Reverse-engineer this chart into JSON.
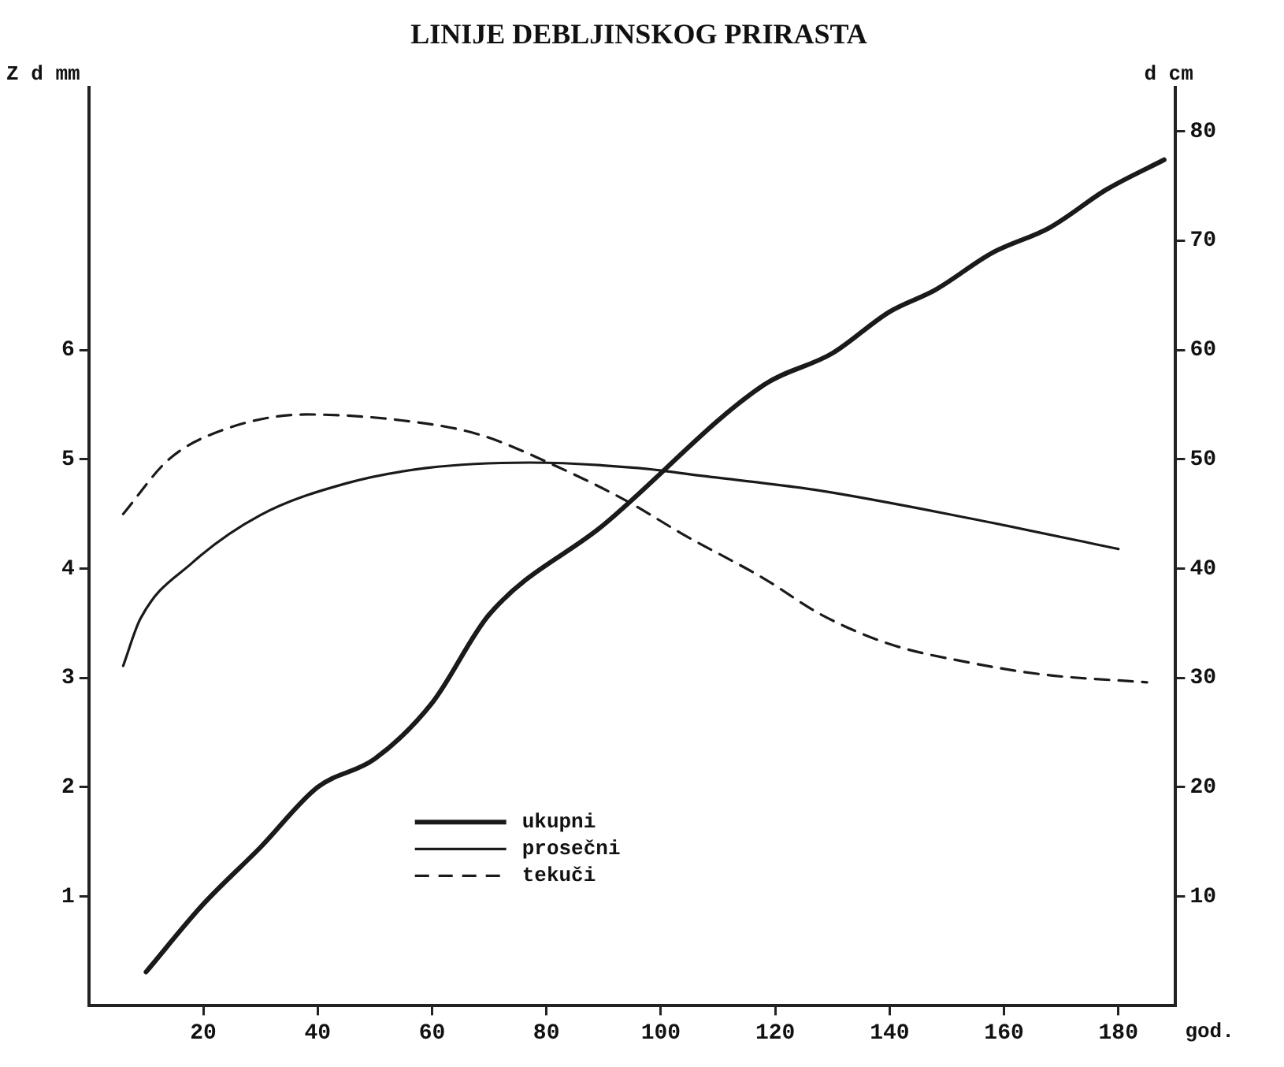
{
  "chart_data": {
    "type": "line",
    "title": "LINIJE DEBLJINSKOG PRIRASTA",
    "xlabel": "god.",
    "ylabel": "Z d mm",
    "y2label": "d cm",
    "xlim": [
      0,
      190
    ],
    "xticks": [
      20,
      40,
      60,
      80,
      100,
      120,
      140,
      160,
      180
    ],
    "ylim": [
      0,
      8.4
    ],
    "yticks": [
      1,
      2,
      3,
      4,
      5,
      6
    ],
    "y2lim": [
      0,
      84
    ],
    "y2ticks": [
      10,
      20,
      30,
      40,
      50,
      60,
      70,
      80
    ],
    "grid": false,
    "legend": "bottom left",
    "line_style": "solid",
    "series": [
      {
        "name": "ukupni",
        "color": "#1a1a1a",
        "axis": "y2",
        "x": [
          10,
          20,
          30,
          40,
          50,
          60,
          70,
          90,
          118,
          130,
          140,
          148,
          158,
          168,
          178,
          188
        ],
        "values": [
          3.1,
          9.3,
          14.5,
          20,
          22.6,
          27.7,
          35.8,
          44,
          56.8,
          59.7,
          63.5,
          65.5,
          68.9,
          71.2,
          74.7,
          77.4
        ]
      },
      {
        "name": "prosečni",
        "color": "#1a1a1a",
        "x": [
          6,
          9,
          18,
          30,
          45,
          59,
          77,
          96,
          107,
          127,
          154,
          180
        ],
        "values": [
          3.11,
          3.54,
          4.05,
          4.49,
          4.78,
          4.92,
          4.97,
          4.92,
          4.85,
          4.72,
          4.46,
          4.18
        ]
      },
      {
        "name": "tekuči",
        "color": "#1a1a1a",
        "line_style": "dashed",
        "x": [
          6,
          14,
          23,
          38,
          54,
          68,
          82,
          94,
          104,
          118,
          128,
          140,
          154,
          167,
          185
        ],
        "values": [
          4.5,
          5.0,
          5.26,
          5.41,
          5.36,
          5.23,
          4.93,
          4.62,
          4.31,
          3.91,
          3.58,
          3.31,
          3.14,
          3.03,
          2.96
        ]
      }
    ]
  }
}
